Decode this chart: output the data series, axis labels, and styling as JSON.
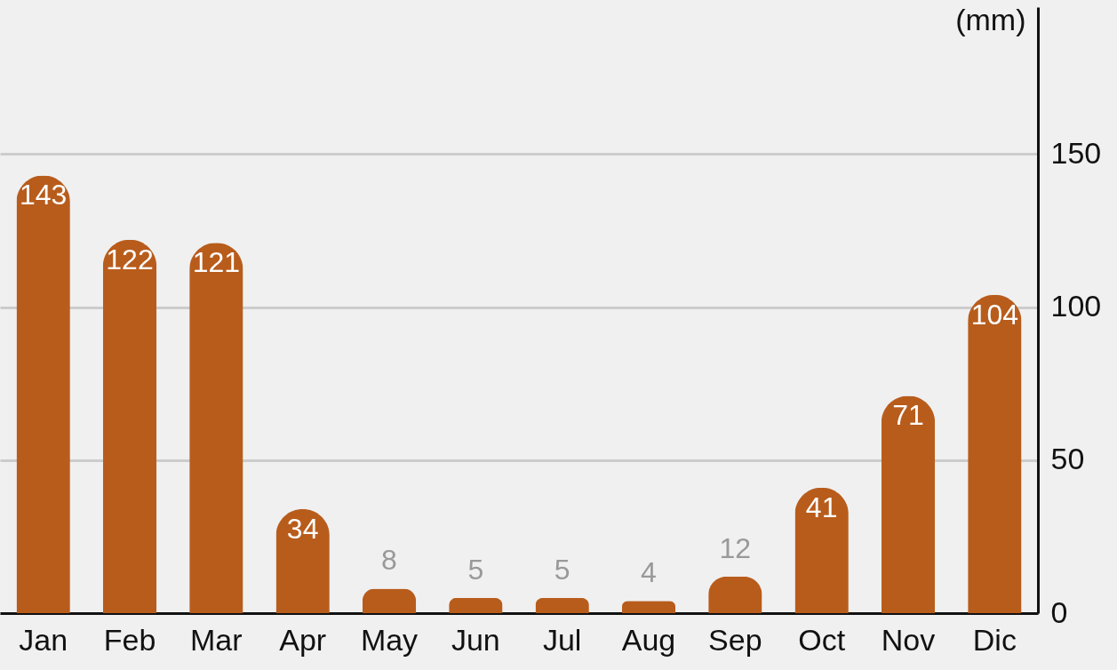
{
  "chart_data": {
    "type": "bar",
    "ylabel": "(mm)",
    "categories": [
      "Jan",
      "Feb",
      "Mar",
      "Apr",
      "May",
      "Jun",
      "Jul",
      "Aug",
      "Sep",
      "Oct",
      "Nov",
      "Dic"
    ],
    "values": [
      143,
      122,
      121,
      34,
      8,
      5,
      5,
      4,
      12,
      41,
      71,
      104
    ],
    "color": "#b85c1c",
    "ylim": [
      0,
      198
    ],
    "yticks": [
      0,
      50,
      100,
      150
    ],
    "grid": "y",
    "data_labels": true
  }
}
